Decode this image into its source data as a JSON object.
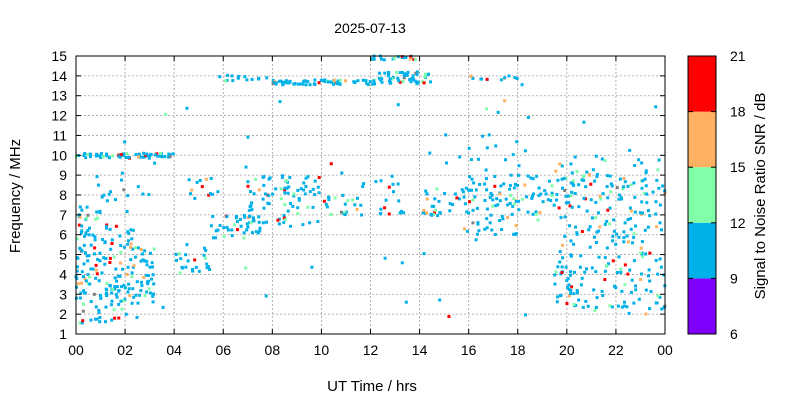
{
  "chart_data": {
    "type": "heatmap",
    "title": "2025-07-13",
    "xlabel": "UT Time / hrs",
    "ylabel": "Frequency / MHz",
    "xlim": [
      0,
      24
    ],
    "ylim": [
      1,
      15
    ],
    "x_tick_labels": [
      "00",
      "02",
      "04",
      "06",
      "08",
      "10",
      "12",
      "14",
      "16",
      "18",
      "20",
      "22",
      "00"
    ],
    "y_tick_labels": [
      "1",
      "2",
      "3",
      "4",
      "5",
      "6",
      "7",
      "8",
      "9",
      "10",
      "11",
      "12",
      "13",
      "14",
      "15"
    ],
    "grid": true,
    "colorbar": {
      "label": "Signal to Noise Ratio SNR / dB",
      "range": [
        6,
        21
      ],
      "tick_labels": [
        "6",
        "9",
        "12",
        "15",
        "18",
        "21"
      ],
      "bands": [
        {
          "min": 6,
          "max": 9,
          "color": "#7f00ff"
        },
        {
          "min": 9,
          "max": 12,
          "color": "#00b0e8"
        },
        {
          "min": 12,
          "max": 15,
          "color": "#80ffa8"
        },
        {
          "min": 15,
          "max": 18,
          "color": "#ffb060"
        },
        {
          "min": 18,
          "max": 21,
          "color": "#ff0000"
        }
      ]
    },
    "clusters": [
      {
        "t": [
          0.0,
          1.0
        ],
        "f": [
          1.5,
          7.5
        ],
        "n": 90
      },
      {
        "t": [
          1.0,
          2.5
        ],
        "f": [
          1.5,
          6.5
        ],
        "n": 90
      },
      {
        "t": [
          2.5,
          3.2
        ],
        "f": [
          2.5,
          5.5
        ],
        "n": 35
      },
      {
        "t": [
          0.0,
          4.0
        ],
        "f": [
          9.85,
          10.1
        ],
        "n": 60
      },
      {
        "t": [
          0.8,
          3.0
        ],
        "f": [
          7.7,
          8.9
        ],
        "n": 12
      },
      {
        "t": [
          4.5,
          5.6
        ],
        "f": [
          7.8,
          8.9
        ],
        "n": 12
      },
      {
        "t": [
          4.0,
          5.5
        ],
        "f": [
          4.0,
          5.5
        ],
        "n": 22
      },
      {
        "t": [
          5.5,
          7.5
        ],
        "f": [
          5.8,
          7.0
        ],
        "n": 40
      },
      {
        "t": [
          7.0,
          10.0
        ],
        "f": [
          6.5,
          9.0
        ],
        "n": 80
      },
      {
        "t": [
          10.0,
          11.5
        ],
        "f": [
          7.0,
          8.0
        ],
        "n": 20
      },
      {
        "t": [
          11.5,
          14.5
        ],
        "f": [
          7.0,
          9.0
        ],
        "n": 25
      },
      {
        "t": [
          14.3,
          16.0
        ],
        "f": [
          6.8,
          8.3
        ],
        "n": 25
      },
      {
        "t": [
          15.8,
          18.0
        ],
        "f": [
          6.0,
          9.0
        ],
        "n": 70
      },
      {
        "t": [
          17.7,
          19.5
        ],
        "f": [
          7.0,
          9.0
        ],
        "n": 35
      },
      {
        "t": [
          19.5,
          22.0
        ],
        "f": [
          2.0,
          9.2
        ],
        "n": 150
      },
      {
        "t": [
          22.0,
          24.0
        ],
        "f": [
          2.0,
          9.0
        ],
        "n": 110
      },
      {
        "t": [
          5.5,
          6.5
        ],
        "f": [
          13.7,
          14.1
        ],
        "n": 6
      },
      {
        "t": [
          6.2,
          8.0
        ],
        "f": [
          13.8,
          14.0
        ],
        "n": 8
      },
      {
        "t": [
          8.0,
          12.2
        ],
        "f": [
          13.55,
          13.8
        ],
        "n": 70
      },
      {
        "t": [
          12.0,
          14.0
        ],
        "f": [
          14.8,
          15.0
        ],
        "n": 20
      },
      {
        "t": [
          12.3,
          14.5
        ],
        "f": [
          13.6,
          14.2
        ],
        "n": 50
      },
      {
        "t": [
          16.0,
          18.0
        ],
        "f": [
          13.8,
          14.0
        ],
        "n": 12
      },
      {
        "t": [
          15.0,
          18.5
        ],
        "f": [
          9.0,
          13.0
        ],
        "n": 16
      },
      {
        "t": [
          19.8,
          24.0
        ],
        "f": [
          9.0,
          10.0
        ],
        "n": 14
      },
      {
        "t": [
          0.0,
          24.0
        ],
        "f": [
          1.5,
          14.0
        ],
        "n": 60
      }
    ]
  }
}
